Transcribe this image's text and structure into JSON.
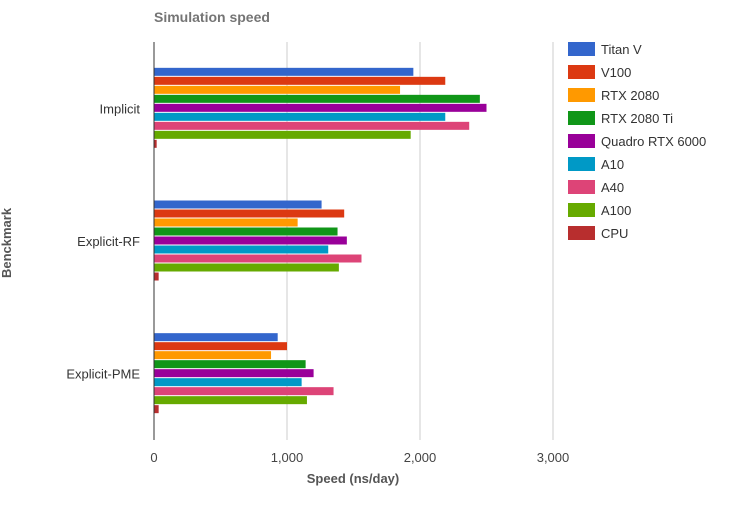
{
  "chart_data": {
    "type": "bar",
    "orientation": "horizontal",
    "title": "Simulation speed",
    "xlabel": "Speed (ns/day)",
    "ylabel": "Benckmark",
    "xlim": [
      0,
      3000
    ],
    "xticks": [
      0,
      1000,
      2000,
      3000
    ],
    "xtick_labels": [
      "0",
      "1,000",
      "2,000",
      "3,000"
    ],
    "grid": true,
    "legend_position": "right",
    "categories": [
      "Implicit",
      "Explicit-RF",
      "Explicit-PME"
    ],
    "series": [
      {
        "name": "Titan V",
        "color": "#3366cc",
        "values": [
          1950,
          1260,
          930
        ]
      },
      {
        "name": "V100",
        "color": "#dc3912",
        "values": [
          2190,
          1430,
          1000
        ]
      },
      {
        "name": "RTX 2080",
        "color": "#ff9900",
        "values": [
          1850,
          1080,
          880
        ]
      },
      {
        "name": "RTX 2080 Ti",
        "color": "#109618",
        "values": [
          2450,
          1380,
          1140
        ]
      },
      {
        "name": "Quadro RTX 6000",
        "color": "#990099",
        "values": [
          2500,
          1450,
          1200
        ]
      },
      {
        "name": "A10",
        "color": "#0099c6",
        "values": [
          2190,
          1310,
          1110
        ]
      },
      {
        "name": "A40",
        "color": "#dd4477",
        "values": [
          2370,
          1560,
          1350
        ]
      },
      {
        "name": "A100",
        "color": "#66aa00",
        "values": [
          1930,
          1390,
          1150
        ]
      },
      {
        "name": "CPU",
        "color": "#b82e2e",
        "values": [
          20,
          35,
          35
        ]
      }
    ]
  }
}
